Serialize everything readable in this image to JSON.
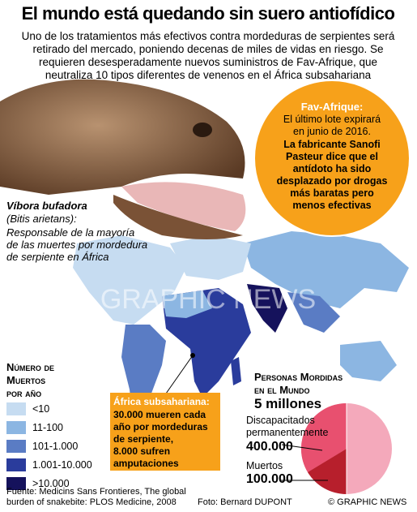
{
  "header": {
    "title": "El mundo está quedando sin suero antiofídico",
    "intro": [
      "Uno de los tratamientos más efectivos contra mordeduras de serpientes será",
      "retirado del mercado, poniendo decenas de miles de vidas en riesgo. Se",
      "requieren desesperadamente nuevos suministros de Fav-Afrique, que",
      "neutraliza 10 tipos diferentes de venenos en el África subsahariana"
    ]
  },
  "callout_fav": {
    "heading": "Fav-Afrique:",
    "lines": [
      "El último lote expirará",
      "en junio de 2016."
    ],
    "bold_lines": [
      "La fabricante Sanofi",
      "Pasteur dice que el",
      "antídoto ha sido",
      "desplazado por drogas",
      "más baratas pero",
      "menos efectivas"
    ]
  },
  "viper": {
    "name": "Víbora bufadora",
    "latin": "(Bitis arietans):",
    "lines": [
      "Responsable de la mayoría",
      "de las muertes por mordedura",
      "de serpiente en África"
    ]
  },
  "watermark": "GRAPHIC NEWS",
  "legend": {
    "title": [
      "Número de",
      "Muertos",
      "por año"
    ],
    "items": [
      {
        "label": "<10",
        "color": "#c6dcf1"
      },
      {
        "label": "11-100",
        "color": "#8cb6e2"
      },
      {
        "label": "101-1.000",
        "color": "#5a7cc4"
      },
      {
        "label": "1.001-10.000",
        "color": "#2a3c9c"
      },
      {
        "label": ">10.000",
        "color": "#15125c"
      }
    ]
  },
  "callout_africa": {
    "heading": "África subsahariana:",
    "lines": [
      "30.000 mueren cada",
      "año por mordeduras",
      "de serpiente,",
      "8.000 sufren",
      "amputaciones"
    ]
  },
  "bites": {
    "title": [
      "Personas Mordidas",
      "en el Mundo"
    ],
    "total": "5 millones",
    "disabled": [
      "Discapacitados",
      "permanentemente"
    ],
    "disabled_value": "400.000",
    "deaths": "Muertos",
    "deaths_value": "100.000"
  },
  "footer": {
    "source": [
      "Fuente: Medicins Sans Frontieres, The global",
      "burden of snakebite: PLOS Medicine, 2008"
    ],
    "photo": "Foto: Bernard DUPONT",
    "copyright": "© GRAPHIC NEWS"
  }
}
